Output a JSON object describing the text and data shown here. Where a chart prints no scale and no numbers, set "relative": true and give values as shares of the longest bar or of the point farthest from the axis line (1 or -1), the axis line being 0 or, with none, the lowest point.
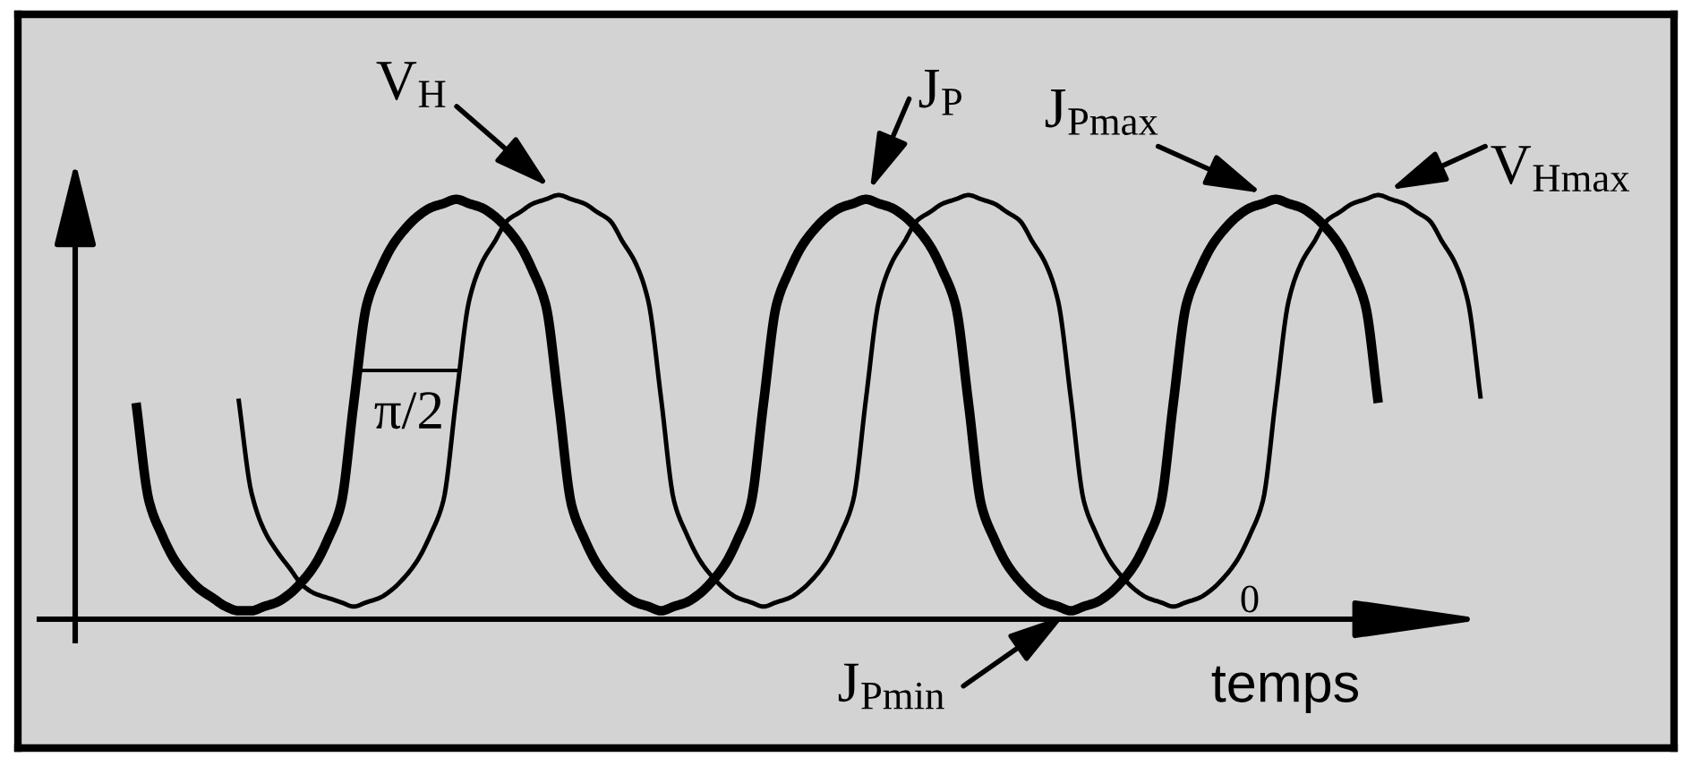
{
  "chart_data": {
    "type": "line",
    "relative": true,
    "xlabel": "temps",
    "categories": [
      null,
      null,
      null,
      null,
      null,
      null,
      null,
      null,
      null,
      null,
      null,
      null,
      null,
      null,
      null,
      null,
      null,
      null,
      null,
      null,
      null,
      null,
      null,
      null,
      null,
      null,
      null,
      null,
      null,
      null,
      null,
      null,
      null,
      null,
      null,
      null,
      null,
      null,
      null,
      null,
      null,
      null,
      null,
      null,
      null,
      null,
      null,
      null,
      null,
      null,
      null,
      null,
      null,
      null,
      null,
      null,
      null,
      null,
      null,
      null,
      null,
      null,
      null,
      null,
      null,
      null,
      null,
      null,
      null,
      null,
      null,
      null,
      null,
      null,
      null,
      null,
      null,
      null,
      null,
      null,
      null,
      null,
      null,
      null,
      null,
      null,
      null,
      null,
      null,
      null,
      null,
      null,
      null,
      null,
      null,
      null,
      null,
      null,
      null,
      null,
      null,
      null,
      null,
      null,
      null,
      null
    ],
    "series": [
      {
        "name": "V$_{H}$",
        "color": "#000000",
        "values": [
          null,
          null,
          null,
          null,
          null,
          null,
          null,
          null,
          0.52,
          0.3,
          0.21,
          0.16,
          0.12,
          0.08,
          0.06,
          0.05,
          0.04,
          0.03,
          0.04,
          0.05,
          0.07,
          0.1,
          0.14,
          0.2,
          0.28,
          0.52,
          0.75,
          0.84,
          0.89,
          0.94,
          0.96,
          0.98,
          0.99,
          1.0,
          0.99,
          0.98,
          0.96,
          0.94,
          0.89,
          0.84,
          0.75,
          0.52,
          0.28,
          0.2,
          0.14,
          0.1,
          0.07,
          0.05,
          0.04,
          0.03,
          0.04,
          0.05,
          0.07,
          0.1,
          0.14,
          0.2,
          0.28,
          0.52,
          0.75,
          0.84,
          0.89,
          0.94,
          0.96,
          0.98,
          0.99,
          1.0,
          0.99,
          0.98,
          0.96,
          0.94,
          0.89,
          0.84,
          0.75,
          0.52,
          0.28,
          0.2,
          0.14,
          0.1,
          0.07,
          0.05,
          0.04,
          0.03,
          0.04,
          0.05,
          0.07,
          0.1,
          0.14,
          0.2,
          0.28,
          0.52,
          0.75,
          0.84,
          0.89,
          0.94,
          0.96,
          0.98,
          0.99,
          1.0,
          0.99,
          0.98,
          0.96,
          0.94,
          0.89,
          0.84,
          0.75,
          0.52
        ]
      },
      {
        "name": "J$_{P}$",
        "color": "#000000",
        "values": [
          0.51,
          0.28,
          0.2,
          0.14,
          0.1,
          0.07,
          0.05,
          0.03,
          0.02,
          0.02,
          0.03,
          0.04,
          0.06,
          0.09,
          0.13,
          0.19,
          0.27,
          0.51,
          0.74,
          0.82,
          0.88,
          0.92,
          0.95,
          0.97,
          0.98,
          0.99,
          0.98,
          0.97,
          0.95,
          0.92,
          0.88,
          0.82,
          0.74,
          0.51,
          0.27,
          0.19,
          0.13,
          0.09,
          0.06,
          0.04,
          0.03,
          0.02,
          0.03,
          0.04,
          0.06,
          0.09,
          0.13,
          0.19,
          0.27,
          0.51,
          0.74,
          0.82,
          0.88,
          0.92,
          0.95,
          0.97,
          0.98,
          0.99,
          0.98,
          0.97,
          0.95,
          0.92,
          0.88,
          0.82,
          0.74,
          0.51,
          0.27,
          0.19,
          0.13,
          0.09,
          0.06,
          0.04,
          0.03,
          0.02,
          0.03,
          0.04,
          0.06,
          0.09,
          0.13,
          0.19,
          0.27,
          0.51,
          0.74,
          0.82,
          0.88,
          0.92,
          0.95,
          0.97,
          0.98,
          0.99,
          0.98,
          0.97,
          0.95,
          0.92,
          0.88,
          0.82,
          0.74,
          0.51,
          null,
          null,
          null,
          null,
          null,
          null,
          null,
          null
        ]
      }
    ],
    "annotations": [
      "J$_{Pmax}$",
      "V$_{Hmax}$",
      "J$_{Pmin}$",
      "π/2",
      "0"
    ]
  }
}
